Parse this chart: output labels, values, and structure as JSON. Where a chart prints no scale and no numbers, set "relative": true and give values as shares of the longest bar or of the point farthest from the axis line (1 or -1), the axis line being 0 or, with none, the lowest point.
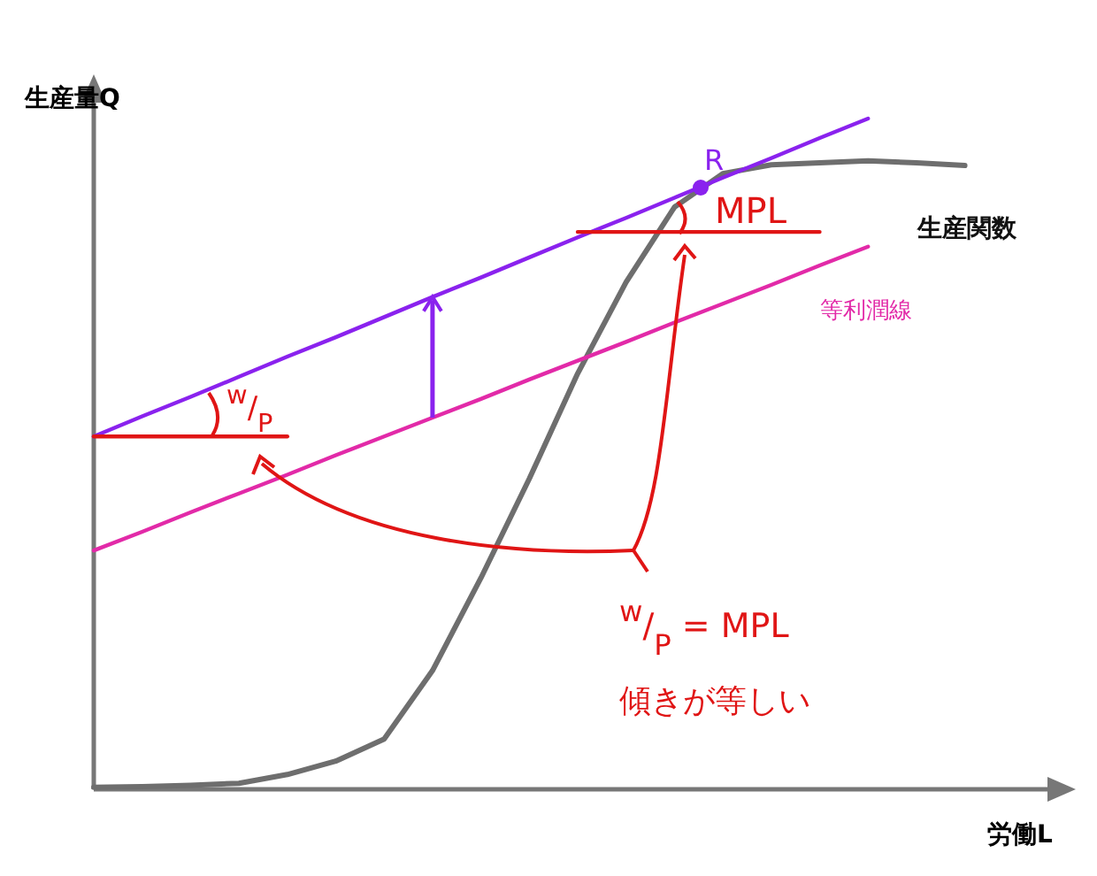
{
  "chart_data": {
    "type": "line",
    "relative": true,
    "xlabel": "労働L",
    "ylabel": "生産量Q",
    "legend": false,
    "tick_labels": false,
    "grid": false,
    "marker": "none",
    "line_style": "solid",
    "categories": [
      null,
      null,
      null,
      null,
      null,
      null,
      null,
      null,
      null,
      null,
      null,
      null,
      null,
      null,
      null,
      null,
      null,
      null,
      null,
      null,
      null
    ],
    "series": [
      {
        "name": "生産関数",
        "color": "#6e6e6e",
        "values": [
          0.003,
          0.004,
          0.006,
          0.009,
          0.022,
          0.042,
          0.075,
          0.177,
          0.315,
          0.463,
          0.62,
          0.756,
          0.868,
          0.918,
          0.931,
          0.934,
          0.937,
          0.934,
          0.93,
          null,
          null
        ]
      },
      {
        "color": "#8a22ee",
        "values": [
          0.526,
          0.556,
          0.585,
          0.615,
          0.645,
          0.674,
          0.704,
          0.734,
          0.763,
          0.793,
          0.823,
          0.852,
          0.882,
          0.912,
          0.941,
          0.971,
          1.0,
          null,
          null,
          null,
          null
        ]
      },
      {
        "name": "等利潤線",
        "color": "#e22aa8",
        "values": [
          0.356,
          0.384,
          0.413,
          0.441,
          0.469,
          0.498,
          0.526,
          0.554,
          0.582,
          0.611,
          0.639,
          0.667,
          0.696,
          0.724,
          0.752,
          0.781,
          0.809,
          null,
          null,
          null,
          null
        ]
      },
      {
        "color": "#e01515",
        "values": [
          0.526,
          0.526,
          0.526,
          0.526,
          0.526,
          null,
          null,
          null,
          null,
          null,
          null,
          null,
          null,
          null,
          null,
          null,
          null,
          null,
          null,
          null,
          null
        ]
      },
      {
        "color": "#e01515",
        "values": [
          null,
          null,
          null,
          null,
          null,
          null,
          null,
          null,
          null,
          null,
          0.831,
          0.831,
          0.831,
          0.831,
          0.831,
          0.831,
          null,
          null,
          null,
          null,
          null
        ]
      }
    ],
    "annotations": [
      "R",
      "MPL",
      "$^{w}$/$_{P}$",
      "$^{w}$/$_{P}$ = MPL",
      "傾きが等しい"
    ]
  }
}
